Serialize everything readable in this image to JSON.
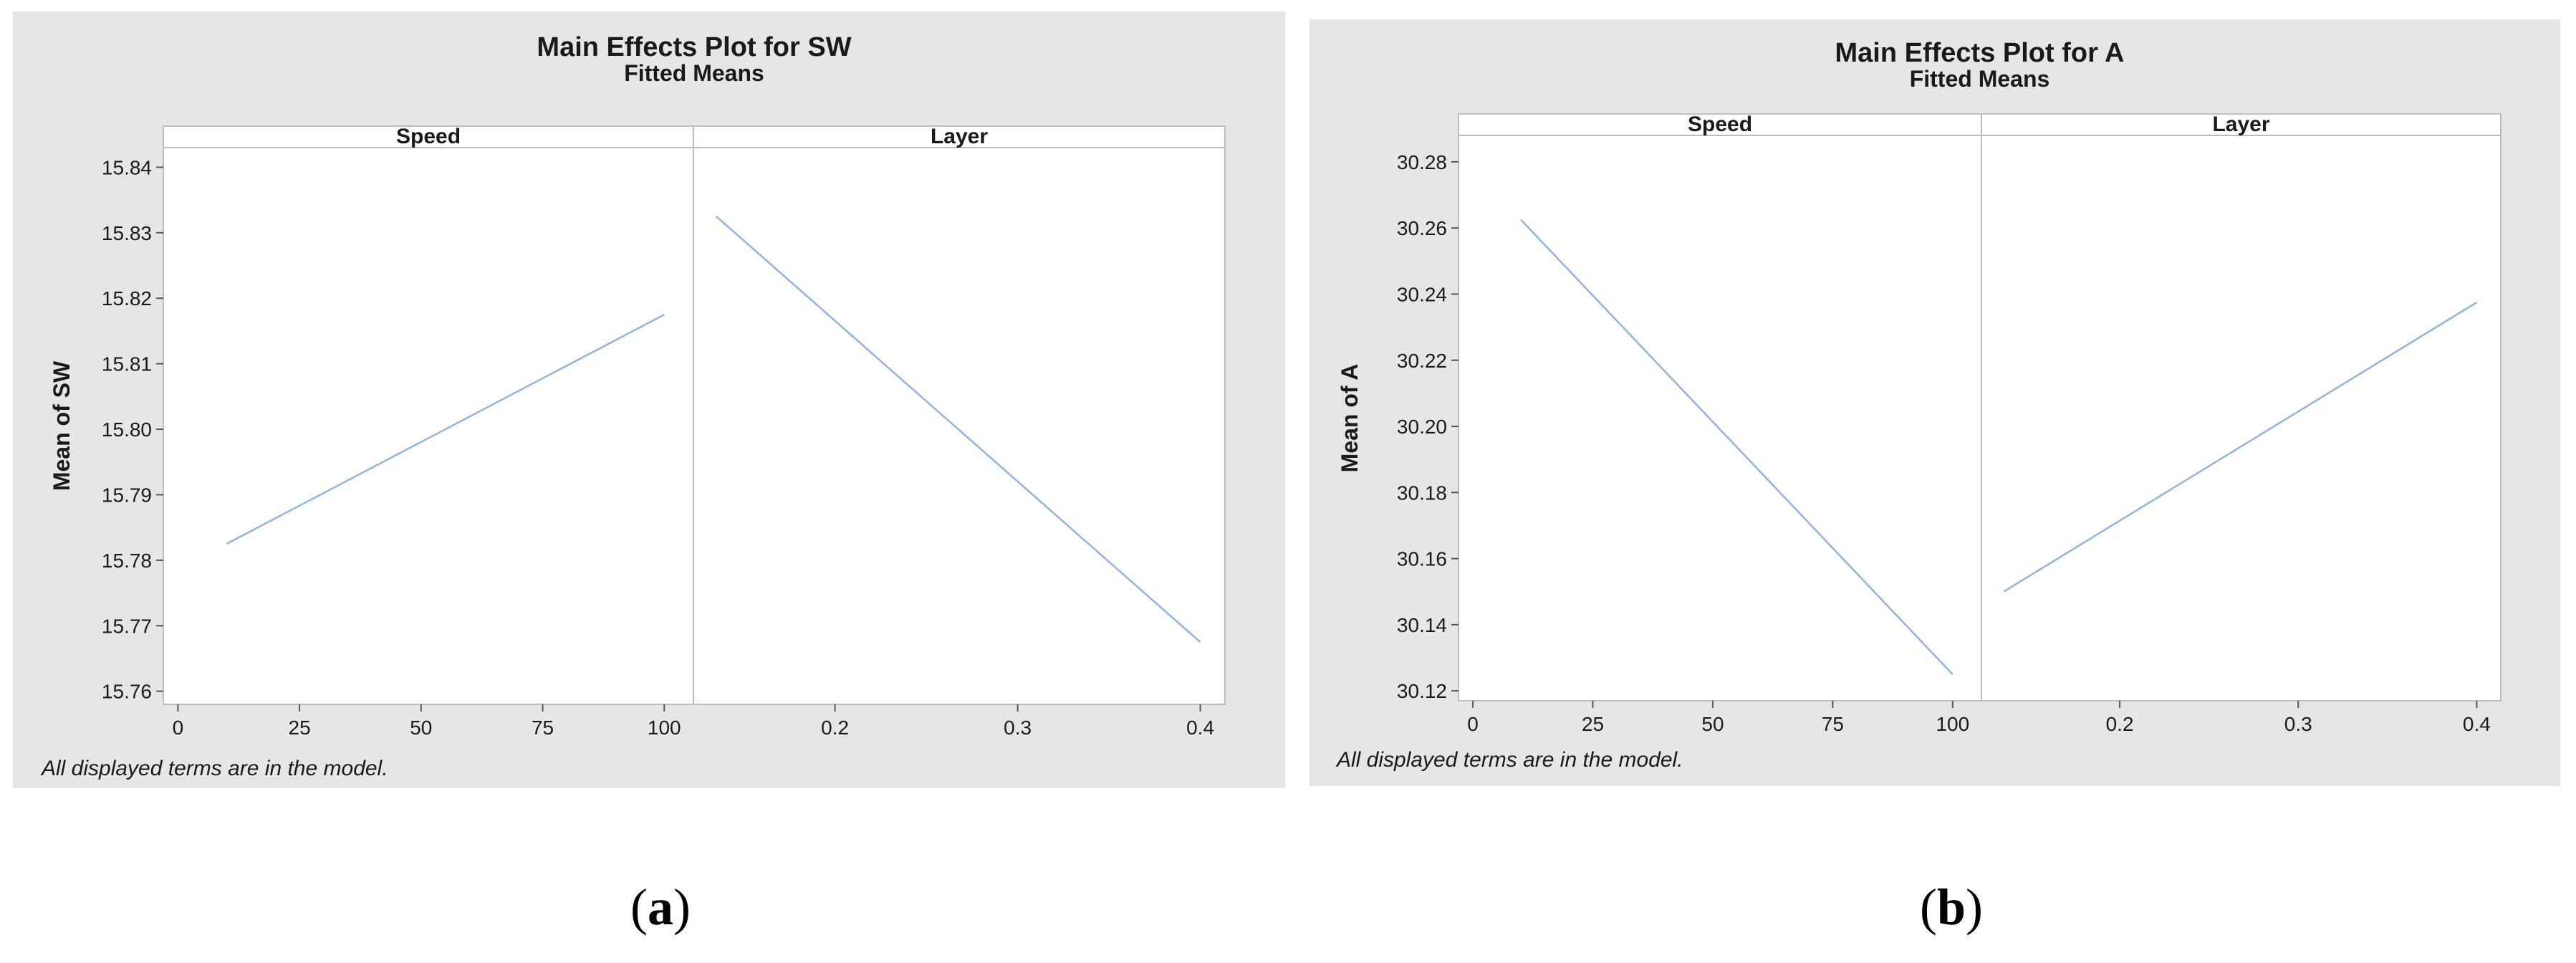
{
  "chart_data": [
    {
      "type": "line",
      "title": "Main Effects Plot for SW",
      "subtitle": "Fitted Means",
      "ylabel": "Mean of SW",
      "footnote": "All displayed terms are in the model.",
      "panel_letter": "a",
      "line_color": "#8fb4e3",
      "ylim": [
        15.758,
        15.843
      ],
      "yticks": [
        15.76,
        15.77,
        15.78,
        15.79,
        15.8,
        15.81,
        15.82,
        15.83,
        15.84
      ],
      "ytick_labels": [
        "15.76",
        "15.77",
        "15.78",
        "15.79",
        "15.80",
        "15.81",
        "15.82",
        "15.83",
        "15.84"
      ],
      "panels": [
        {
          "label": "Speed",
          "xlim": [
            -3,
            106
          ],
          "xticks": [
            0,
            25,
            50,
            75,
            100
          ],
          "xtick_labels": [
            "0",
            "25",
            "50",
            "75",
            "100"
          ],
          "x": [
            10,
            100
          ],
          "y": [
            15.7825,
            15.8175
          ]
        },
        {
          "label": "Layer",
          "xlim": [
            0.1225,
            0.4135
          ],
          "xticks": [
            0.2,
            0.3,
            0.4
          ],
          "xtick_labels": [
            "0.2",
            "0.3",
            "0.4"
          ],
          "x": [
            0.135,
            0.4
          ],
          "y": [
            15.8325,
            15.7675
          ]
        }
      ]
    },
    {
      "type": "line",
      "title": "Main Effects Plot for A",
      "subtitle": "Fitted Means",
      "ylabel": "Mean of A",
      "footnote": "All displayed terms are in the model.",
      "panel_letter": "b",
      "line_color": "#8fb4e3",
      "ylim": [
        30.117,
        30.288
      ],
      "yticks": [
        30.12,
        30.14,
        30.16,
        30.18,
        30.2,
        30.22,
        30.24,
        30.26,
        30.28
      ],
      "ytick_labels": [
        "30.12",
        "30.14",
        "30.16",
        "30.18",
        "30.20",
        "30.22",
        "30.24",
        "30.26",
        "30.28"
      ],
      "panels": [
        {
          "label": "Speed",
          "xlim": [
            -3,
            106
          ],
          "xticks": [
            0,
            25,
            50,
            75,
            100
          ],
          "xtick_labels": [
            "0",
            "25",
            "50",
            "75",
            "100"
          ],
          "x": [
            10,
            100
          ],
          "y": [
            30.2625,
            30.125
          ]
        },
        {
          "label": "Layer",
          "xlim": [
            0.1225,
            0.4135
          ],
          "xticks": [
            0.2,
            0.3,
            0.4
          ],
          "xtick_labels": [
            "0.2",
            "0.3",
            "0.4"
          ],
          "x": [
            0.135,
            0.4
          ],
          "y": [
            30.15,
            30.2375
          ]
        }
      ]
    }
  ]
}
